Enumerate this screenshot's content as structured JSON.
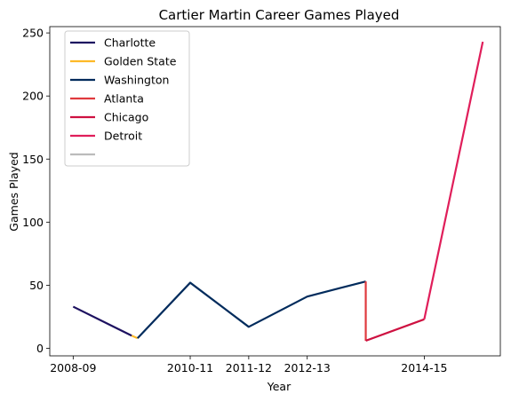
{
  "chart_data": {
    "type": "line",
    "title": "Cartier Martin Career Games Played",
    "xlabel": "Year",
    "ylabel": "Games Played",
    "x_ticks": [
      "2008-09",
      "2010-11",
      "2011-12",
      "2012-13",
      "2014-15"
    ],
    "x_tick_positions": [
      0,
      2,
      3,
      4,
      6
    ],
    "xlim": [
      -0.4,
      7.3
    ],
    "ylim": [
      -6,
      255
    ],
    "y_ticks": [
      0,
      50,
      100,
      150,
      200,
      250
    ],
    "legend_position": "top-left",
    "series": [
      {
        "name": "Charlotte",
        "color": "#1d1160",
        "points": [
          [
            0,
            33
          ],
          [
            1,
            10
          ]
        ]
      },
      {
        "name": "Golden State",
        "color": "#fdb927",
        "points": [
          [
            1,
            10
          ],
          [
            1.1,
            8
          ]
        ]
      },
      {
        "name": "Washington",
        "color": "#002b5c",
        "points": [
          [
            1.1,
            8
          ],
          [
            2,
            52
          ],
          [
            3,
            17
          ],
          [
            4,
            41
          ],
          [
            5,
            53
          ]
        ]
      },
      {
        "name": "Atlanta",
        "color": "#e03a3e",
        "points": [
          [
            5,
            53
          ],
          [
            5,
            6
          ]
        ]
      },
      {
        "name": "Chicago",
        "color": "#ce1141",
        "points": [
          [
            5,
            6
          ],
          [
            6,
            23
          ]
        ]
      },
      {
        "name": "Detroit",
        "color": "#e01e5a",
        "points": [
          [
            6,
            23
          ],
          [
            7,
            243
          ]
        ]
      },
      {
        "name": "",
        "color": "#bbbbbb",
        "points": []
      }
    ]
  }
}
